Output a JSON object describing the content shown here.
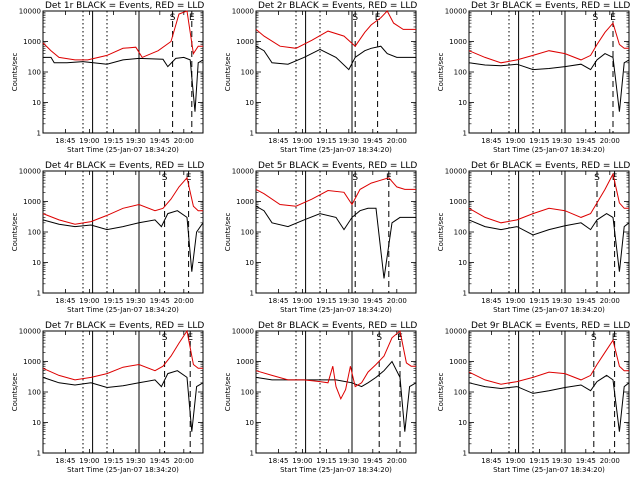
{
  "chart_data": [
    {
      "type": "line",
      "title": "Det 1r BLACK = Events, RED = LLD",
      "xlabel": "Start Time (25-Jan-07 18:34:20)",
      "ylabel": "Counts/sec",
      "y_scale": "log",
      "ylim": [
        1,
        10000
      ],
      "x_tick_labels": [
        "18:45",
        "19:00",
        "19:15",
        "19:30",
        "19:45",
        "20:00"
      ],
      "y_tick_labels": [
        "1",
        "10",
        "100",
        "1000",
        "10000"
      ],
      "markers": [
        {
          "label": "S",
          "x": 0.81
        },
        {
          "label": "E",
          "x": 0.93
        }
      ],
      "series": [
        {
          "name": "Events",
          "color": "#000000",
          "x": [
            0.0,
            0.05,
            0.07,
            0.15,
            0.25,
            0.4,
            0.5,
            0.6,
            0.75,
            0.78,
            0.83,
            0.88,
            0.92,
            0.95,
            0.97,
            1.0
          ],
          "values": [
            300,
            300,
            200,
            200,
            220,
            180,
            250,
            280,
            260,
            150,
            280,
            300,
            250,
            5,
            200,
            250
          ]
        },
        {
          "name": "LLD",
          "color": "#dd0000",
          "x": [
            0.0,
            0.05,
            0.1,
            0.2,
            0.28,
            0.4,
            0.5,
            0.58,
            0.62,
            0.72,
            0.8,
            0.85,
            0.9,
            0.94,
            0.97,
            1.0
          ],
          "values": [
            900,
            500,
            300,
            250,
            250,
            350,
            600,
            650,
            300,
            500,
            1000,
            8000,
            10000,
            400,
            700,
            700
          ]
        }
      ]
    },
    {
      "type": "line",
      "title": "Det 2r BLACK = Events, RED = LLD",
      "xlabel": "Start Time (25-Jan-07 18:34:20)",
      "ylabel": "Counts/sec",
      "y_scale": "log",
      "ylim": [
        1,
        10000
      ],
      "x_tick_labels": [
        "18:45",
        "19:00",
        "19:15",
        "19:30",
        "19:45",
        "20:00"
      ],
      "y_tick_labels": [
        "1",
        "10",
        "100",
        "1000",
        "10000"
      ],
      "markers": [
        {
          "label": "S",
          "x": 0.62
        },
        {
          "label": "E",
          "x": 0.76
        }
      ],
      "series": [
        {
          "name": "Events",
          "color": "#000000",
          "x": [
            0.0,
            0.05,
            0.1,
            0.2,
            0.3,
            0.4,
            0.5,
            0.58,
            0.62,
            0.68,
            0.72,
            0.78,
            0.82,
            0.88,
            0.95,
            1.0
          ],
          "values": [
            700,
            500,
            200,
            180,
            300,
            550,
            300,
            120,
            300,
            500,
            600,
            700,
            400,
            300,
            300,
            300
          ]
        },
        {
          "name": "LLD",
          "color": "#dd0000",
          "x": [
            0.0,
            0.05,
            0.15,
            0.25,
            0.35,
            0.45,
            0.55,
            0.62,
            0.68,
            0.72,
            0.78,
            0.82,
            0.86,
            0.92,
            1.0
          ],
          "values": [
            2500,
            1500,
            700,
            600,
            1100,
            2200,
            1500,
            700,
            2000,
            3500,
            6000,
            10000,
            4000,
            2500,
            2500
          ]
        }
      ]
    },
    {
      "type": "line",
      "title": "Det 3r BLACK = Events, RED = LLD",
      "xlabel": "Start Time (25-Jan-07 18:34:20)",
      "ylabel": "Counts/sec",
      "y_scale": "log",
      "ylim": [
        1,
        10000
      ],
      "x_tick_labels": [
        "18:45",
        "19:00",
        "19:15",
        "19:30",
        "19:45",
        "20:00"
      ],
      "y_tick_labels": [
        "1",
        "10",
        "100",
        "1000",
        "10000"
      ],
      "markers": [
        {
          "label": "S",
          "x": 0.79
        },
        {
          "label": "E",
          "x": 0.9
        }
      ],
      "series": [
        {
          "name": "Events",
          "color": "#000000",
          "x": [
            0.0,
            0.1,
            0.2,
            0.3,
            0.4,
            0.5,
            0.6,
            0.7,
            0.76,
            0.8,
            0.85,
            0.9,
            0.94,
            0.97,
            1.0
          ],
          "values": [
            200,
            170,
            160,
            180,
            120,
            130,
            150,
            180,
            120,
            250,
            400,
            300,
            5,
            200,
            250
          ]
        },
        {
          "name": "LLD",
          "color": "#dd0000",
          "x": [
            0.0,
            0.1,
            0.2,
            0.3,
            0.4,
            0.5,
            0.6,
            0.7,
            0.76,
            0.8,
            0.85,
            0.9,
            0.94,
            0.97,
            1.0
          ],
          "values": [
            500,
            300,
            200,
            250,
            350,
            500,
            400,
            250,
            350,
            800,
            2000,
            4000,
            800,
            600,
            600
          ]
        }
      ]
    },
    {
      "type": "line",
      "title": "Det 4r BLACK = Events, RED = LLD",
      "xlabel": "Start Time (25-Jan-07 18:34:20)",
      "ylabel": "Counts/sec",
      "y_scale": "log",
      "ylim": [
        1,
        10000
      ],
      "x_tick_labels": [
        "18:45",
        "19:00",
        "19:15",
        "19:30",
        "19:45",
        "20:00"
      ],
      "y_tick_labels": [
        "1",
        "10",
        "100",
        "1000",
        "10000"
      ],
      "markers": [
        {
          "label": "S",
          "x": 0.76
        },
        {
          "label": "E",
          "x": 0.91
        }
      ],
      "series": [
        {
          "name": "Events",
          "color": "#000000",
          "x": [
            0.0,
            0.1,
            0.2,
            0.3,
            0.4,
            0.5,
            0.6,
            0.7,
            0.74,
            0.78,
            0.84,
            0.9,
            0.93,
            0.96,
            1.0
          ],
          "values": [
            250,
            180,
            150,
            170,
            120,
            150,
            200,
            250,
            150,
            400,
            500,
            300,
            5,
            100,
            200
          ]
        },
        {
          "name": "LLD",
          "color": "#dd0000",
          "x": [
            0.0,
            0.1,
            0.2,
            0.3,
            0.4,
            0.5,
            0.6,
            0.7,
            0.75,
            0.8,
            0.85,
            0.9,
            0.94,
            0.97,
            1.0
          ],
          "values": [
            400,
            250,
            180,
            220,
            350,
            600,
            800,
            500,
            600,
            1200,
            3000,
            6000,
            700,
            500,
            500
          ]
        }
      ]
    },
    {
      "type": "line",
      "title": "Det 5r BLACK = Events, RED = LLD",
      "xlabel": "Start Time (25-Jan-07 18:34:20)",
      "ylabel": "Counts/sec",
      "y_scale": "log",
      "ylim": [
        1,
        10000
      ],
      "x_tick_labels": [
        "18:45",
        "19:00",
        "19:15",
        "19:30",
        "19:45",
        "20:00"
      ],
      "y_tick_labels": [
        "1",
        "10",
        "100",
        "1000",
        "10000"
      ],
      "markers": [
        {
          "label": "S",
          "x": 0.62
        },
        {
          "label": "E",
          "x": 0.83
        }
      ],
      "series": [
        {
          "name": "Events",
          "color": "#000000",
          "x": [
            0.0,
            0.05,
            0.1,
            0.2,
            0.3,
            0.4,
            0.5,
            0.55,
            0.6,
            0.65,
            0.7,
            0.75,
            0.8,
            0.85,
            0.9,
            0.95,
            1.0
          ],
          "values": [
            700,
            500,
            200,
            150,
            250,
            400,
            300,
            120,
            300,
            500,
            600,
            600,
            3,
            200,
            300,
            300,
            300
          ]
        },
        {
          "name": "LLD",
          "color": "#dd0000",
          "x": [
            0.0,
            0.05,
            0.15,
            0.25,
            0.35,
            0.45,
            0.55,
            0.6,
            0.65,
            0.72,
            0.78,
            0.83,
            0.88,
            0.93,
            1.0
          ],
          "values": [
            2500,
            1800,
            800,
            700,
            1200,
            2300,
            2000,
            800,
            2500,
            4000,
            5000,
            6000,
            3000,
            2500,
            2500
          ]
        }
      ]
    },
    {
      "type": "line",
      "title": "Det 6r BLACK = Events, RED = LLD",
      "xlabel": "Start Time (25-Jan-07 18:34:20)",
      "ylabel": "Counts/sec",
      "y_scale": "log",
      "ylim": [
        1,
        10000
      ],
      "x_tick_labels": [
        "18:45",
        "19:00",
        "19:15",
        "19:30",
        "19:45",
        "20:00"
      ],
      "y_tick_labels": [
        "1",
        "10",
        "100",
        "1000",
        "10000"
      ],
      "markers": [
        {
          "label": "S",
          "x": 0.8
        },
        {
          "label": "E",
          "x": 0.91
        }
      ],
      "series": [
        {
          "name": "Events",
          "color": "#000000",
          "x": [
            0.0,
            0.1,
            0.2,
            0.3,
            0.4,
            0.5,
            0.6,
            0.7,
            0.76,
            0.8,
            0.86,
            0.9,
            0.94,
            0.97,
            1.0
          ],
          "values": [
            250,
            150,
            120,
            150,
            80,
            120,
            160,
            200,
            120,
            250,
            400,
            300,
            5,
            150,
            200
          ]
        },
        {
          "name": "LLD",
          "color": "#dd0000",
          "x": [
            0.0,
            0.1,
            0.2,
            0.3,
            0.4,
            0.5,
            0.6,
            0.7,
            0.76,
            0.8,
            0.85,
            0.9,
            0.94,
            0.97,
            1.0
          ],
          "values": [
            600,
            300,
            200,
            250,
            400,
            600,
            500,
            300,
            400,
            900,
            2500,
            8000,
            900,
            600,
            600
          ]
        }
      ]
    },
    {
      "type": "line",
      "title": "Det 7r BLACK = Events, RED = LLD",
      "xlabel": "Start Time (25-Jan-07 18:34:20)",
      "ylabel": "Counts/sec",
      "y_scale": "log",
      "ylim": [
        1,
        10000
      ],
      "x_tick_labels": [
        "18:45",
        "19:00",
        "19:15",
        "19:30",
        "19:45",
        "20:00"
      ],
      "y_tick_labels": [
        "1",
        "10",
        "100",
        "1000",
        "10000"
      ],
      "markers": [
        {
          "label": "S",
          "x": 0.76
        },
        {
          "label": "E",
          "x": 0.92
        }
      ],
      "series": [
        {
          "name": "Events",
          "color": "#000000",
          "x": [
            0.0,
            0.1,
            0.2,
            0.3,
            0.4,
            0.5,
            0.6,
            0.7,
            0.74,
            0.78,
            0.84,
            0.9,
            0.93,
            0.96,
            1.0
          ],
          "values": [
            300,
            200,
            170,
            200,
            140,
            160,
            200,
            250,
            150,
            400,
            500,
            300,
            5,
            150,
            200
          ]
        },
        {
          "name": "LLD",
          "color": "#dd0000",
          "x": [
            0.0,
            0.1,
            0.2,
            0.3,
            0.4,
            0.5,
            0.6,
            0.7,
            0.75,
            0.8,
            0.85,
            0.9,
            0.94,
            0.97,
            1.0
          ],
          "values": [
            600,
            350,
            250,
            300,
            400,
            650,
            800,
            500,
            700,
            1500,
            4000,
            10000,
            800,
            600,
            600
          ]
        }
      ]
    },
    {
      "type": "line",
      "title": "Det 8r BLACK = Events, RED = LLD",
      "xlabel": "Start Time (25-Jan-07 18:34:20)",
      "ylabel": "Counts/sec",
      "y_scale": "log",
      "ylim": [
        1,
        10000
      ],
      "x_tick_labels": [
        "18:45",
        "19:00",
        "19:15",
        "19:30",
        "19:45",
        "20:00"
      ],
      "y_tick_labels": [
        "1",
        "10",
        "100",
        "1000",
        "10000"
      ],
      "markers": [
        {
          "label": "S",
          "x": 0.77
        },
        {
          "label": "E",
          "x": 0.9
        }
      ],
      "series": [
        {
          "name": "Events",
          "color": "#000000",
          "x": [
            0.0,
            0.1,
            0.2,
            0.3,
            0.4,
            0.5,
            0.6,
            0.66,
            0.7,
            0.75,
            0.8,
            0.85,
            0.9,
            0.93,
            0.96,
            1.0
          ],
          "values": [
            300,
            250,
            250,
            250,
            250,
            250,
            200,
            150,
            200,
            300,
            500,
            1000,
            300,
            5,
            150,
            200
          ]
        },
        {
          "name": "LLD",
          "color": "#dd0000",
          "x": [
            0.0,
            0.1,
            0.2,
            0.3,
            0.4,
            0.45,
            0.48,
            0.5,
            0.53,
            0.56,
            0.59,
            0.62,
            0.66,
            0.7,
            0.75,
            0.8,
            0.85,
            0.9,
            0.94,
            0.97,
            1.0
          ],
          "values": [
            500,
            350,
            250,
            250,
            220,
            200,
            700,
            150,
            60,
            120,
            700,
            150,
            200,
            450,
            800,
            1500,
            6000,
            10000,
            900,
            700,
            700
          ]
        }
      ]
    },
    {
      "type": "line",
      "title": "Det 9r BLACK = Events, RED = LLD",
      "xlabel": "Start Time (25-Jan-07 18:34:20)",
      "ylabel": "Counts/sec",
      "y_scale": "log",
      "ylim": [
        1,
        10000
      ],
      "x_tick_labels": [
        "18:45",
        "19:00",
        "19:15",
        "19:30",
        "19:45",
        "20:00"
      ],
      "y_tick_labels": [
        "1",
        "10",
        "100",
        "1000",
        "10000"
      ],
      "markers": [
        {
          "label": "S",
          "x": 0.78
        },
        {
          "label": "E",
          "x": 0.91
        }
      ],
      "series": [
        {
          "name": "Events",
          "color": "#000000",
          "x": [
            0.0,
            0.1,
            0.2,
            0.3,
            0.4,
            0.5,
            0.6,
            0.7,
            0.76,
            0.8,
            0.86,
            0.9,
            0.94,
            0.97,
            1.0
          ],
          "values": [
            200,
            150,
            130,
            150,
            90,
            110,
            140,
            170,
            110,
            220,
            350,
            250,
            5,
            150,
            200
          ]
        },
        {
          "name": "LLD",
          "color": "#dd0000",
          "x": [
            0.0,
            0.1,
            0.2,
            0.3,
            0.4,
            0.5,
            0.6,
            0.7,
            0.76,
            0.8,
            0.85,
            0.9,
            0.94,
            0.97,
            1.0
          ],
          "values": [
            450,
            250,
            180,
            220,
            300,
            450,
            400,
            250,
            350,
            800,
            2000,
            5000,
            700,
            500,
            500
          ]
        }
      ]
    }
  ]
}
